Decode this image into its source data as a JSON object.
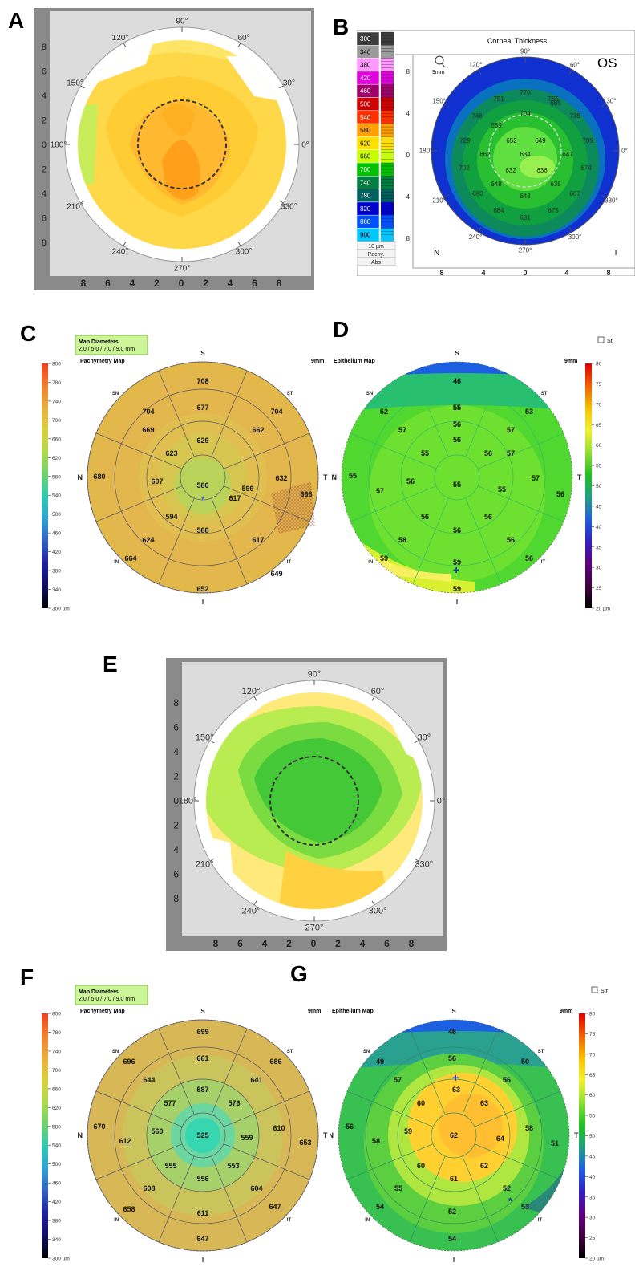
{
  "panels": {
    "A": {
      "letter": "A",
      "angle_labels": [
        "90°",
        "60°",
        "30°",
        "0°",
        "330°",
        "300°",
        "270°",
        "240°",
        "210°",
        "180°",
        "150°",
        "120°"
      ],
      "x_ticks": [
        "8",
        "6",
        "4",
        "2",
        "0",
        "2",
        "4",
        "6",
        "8"
      ],
      "y_ticks": [
        "8",
        "6",
        "4",
        "2",
        "0",
        "2",
        "4",
        "6",
        "8"
      ]
    },
    "B": {
      "letter": "B",
      "title": "Corneal Thickness",
      "eye": "OS",
      "zoom_label": "9mm",
      "scale": [
        "300",
        "340",
        "380",
        "420",
        "460",
        "500",
        "540",
        "580",
        "620",
        "660",
        "700",
        "740",
        "780",
        "820",
        "860",
        "900"
      ],
      "scale_colors": [
        "#3c3c3c",
        "#9a9a9a",
        "#ff99ff",
        "#e000e0",
        "#a0006a",
        "#d00000",
        "#ff3000",
        "#ffa000",
        "#ffe000",
        "#c8ff00",
        "#00c000",
        "#008040",
        "#006060",
        "#0000d0",
        "#0050ff",
        "#00c8ff",
        "#a0ffff"
      ],
      "scale_footer": [
        "10 µm",
        "Pachy.",
        "Abs"
      ],
      "angle_labels": [
        "90°",
        "60°",
        "30°",
        "0°",
        "330°",
        "300°",
        "270°",
        "240°",
        "210°",
        "180°",
        "150°",
        "120°"
      ],
      "corner_labels": {
        "left": "N",
        "right": "T"
      },
      "x_ticks": [
        "8",
        "4",
        "0",
        "4",
        "8"
      ],
      "y_ticks": [
        "8",
        "4",
        "0",
        "4",
        "8"
      ],
      "values": [
        "770",
        "751",
        "765",
        "746",
        "704",
        "685",
        "738",
        "689",
        "729",
        "652",
        "649",
        "705",
        "662",
        "634",
        "647",
        "702",
        "632",
        "636",
        "674",
        "648",
        "635",
        "690",
        "643",
        "667",
        "684",
        "681",
        "675"
      ]
    },
    "C": {
      "letter": "C",
      "map_diameters_title": "Map Diameters",
      "map_diameters_values": "2.0 / 5.0 / 7.0 / 9.0 mm",
      "map_title": "Pachymetry Map",
      "size": "9mm",
      "scale": [
        "800",
        "780",
        "740",
        "700",
        "660",
        "620",
        "580",
        "540",
        "500",
        "460",
        "420",
        "380",
        "340",
        "300 µm"
      ],
      "dirs": {
        "S": "S",
        "I": "I",
        "N": "N",
        "T": "T",
        "SN": "SN",
        "ST": "ST",
        "IN": "IN",
        "IT": "IT"
      },
      "values": {
        "center": "580",
        "r1": [
          "629",
          "599",
          "588",
          "594"
        ],
        "r2": [
          "677",
          "662",
          "632",
          "617",
          "617",
          "624",
          "607",
          "623"
        ],
        "r3": [
          "708",
          "704",
          "666",
          "649",
          "652",
          "664",
          "680",
          "669",
          "704"
        ]
      }
    },
    "D": {
      "letter": "D",
      "map_title": "Epithelium Map",
      "size": "9mm",
      "checkbox_label": "St",
      "scale": [
        "80",
        "75",
        "70",
        "65",
        "60",
        "55",
        "50",
        "45",
        "40",
        "35",
        "30",
        "25",
        "20 µm"
      ],
      "dirs": {
        "S": "S",
        "I": "I",
        "N": "N",
        "T": "T",
        "SN": "SN",
        "ST": "ST",
        "IN": "IN",
        "IT": "IT"
      },
      "values": {
        "center": "55",
        "r1": [
          "56",
          "55",
          "56",
          "56"
        ],
        "r2": [
          "55",
          "57",
          "56",
          "56",
          "56",
          "58",
          "56",
          "55",
          "56"
        ],
        "r3": [
          "46",
          "55",
          "53",
          "57",
          "57",
          "56",
          "59",
          "59",
          "59",
          "56",
          "57",
          "57",
          "55",
          "52"
        ]
      }
    },
    "E": {
      "letter": "E",
      "angle_labels": [
        "90°",
        "60°",
        "30°",
        "0°",
        "330°",
        "300°",
        "270°",
        "240°",
        "210°",
        "180°",
        "150°",
        "120°"
      ],
      "x_ticks": [
        "8",
        "6",
        "4",
        "2",
        "0",
        "2",
        "4",
        "6",
        "8"
      ],
      "y_ticks": [
        "8",
        "6",
        "4",
        "2",
        "0",
        "2",
        "4",
        "6",
        "8"
      ]
    },
    "F": {
      "letter": "F",
      "map_diameters_title": "Map Diameters",
      "map_diameters_values": "2.0 / 5.0 / 7.0 / 9.0 mm",
      "map_title": "Pachymetry Map",
      "size": "9mm",
      "scale": [
        "800",
        "780",
        "740",
        "700",
        "660",
        "620",
        "580",
        "540",
        "500",
        "460",
        "420",
        "380",
        "340",
        "300 µm"
      ],
      "dirs": {
        "S": "S",
        "I": "I",
        "N": "N",
        "T": "T",
        "SN": "SN",
        "ST": "ST",
        "IN": "IN",
        "IT": "IT"
      },
      "values": {
        "center": "525",
        "r1": [
          "587",
          "559",
          "556",
          "560"
        ],
        "r2": [
          "661",
          "641",
          "610",
          "604",
          "611",
          "608",
          "577",
          "576",
          "555",
          "553",
          "644"
        ],
        "r3": [
          "699",
          "696",
          "686",
          "670",
          "653",
          "647",
          "647",
          "658",
          "612"
        ]
      }
    },
    "G": {
      "letter": "G",
      "map_title": "Epithelium Map",
      "size": "9mm",
      "checkbox_label": "Str",
      "scale": [
        "80",
        "75",
        "70",
        "65",
        "60",
        "55",
        "50",
        "45",
        "40",
        "35",
        "30",
        "25",
        "20 µm"
      ],
      "dirs": {
        "S": "S",
        "I": "I",
        "N": "N",
        "T": "T",
        "SN": "SN",
        "ST": "ST",
        "IN": "IN",
        "IT": "IT"
      },
      "values": {
        "center": "62",
        "r1": [
          "63",
          "64",
          "61",
          "59"
        ],
        "r2": [
          "56",
          "57",
          "56",
          "63",
          "60",
          "58",
          "62",
          "60",
          "55",
          "52"
        ],
        "r3": [
          "46",
          "49",
          "50",
          "56",
          "58",
          "51",
          "53",
          "52",
          "54",
          "54"
        ]
      }
    }
  }
}
